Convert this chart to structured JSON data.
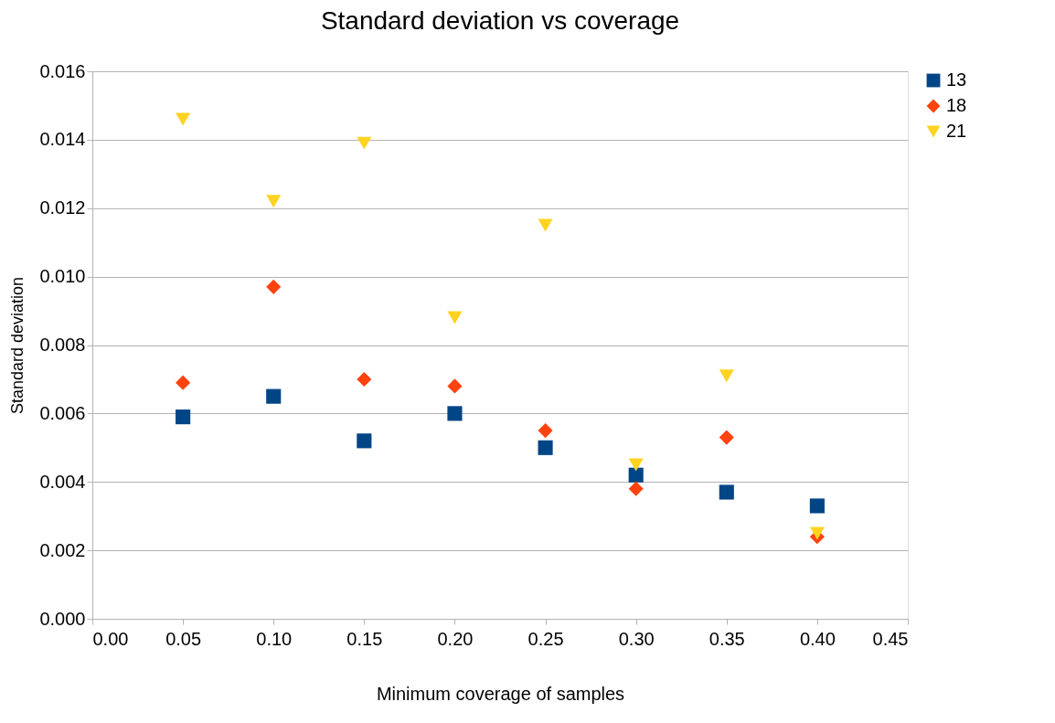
{
  "chart_data": {
    "type": "scatter",
    "title": "Standard deviation vs coverage",
    "xlabel": "Minimum coverage of samples",
    "ylabel": "Standard deviation",
    "x": [
      0.05,
      0.1,
      0.15,
      0.2,
      0.25,
      0.3,
      0.35,
      0.4
    ],
    "series": [
      {
        "name": "13",
        "color": "#004586",
        "marker": "square",
        "values": [
          0.0059,
          0.0065,
          0.0052,
          0.006,
          0.005,
          0.0042,
          0.0037,
          0.0033
        ]
      },
      {
        "name": "18",
        "color": "#ff420e",
        "marker": "diamond",
        "values": [
          0.0069,
          0.0097,
          0.007,
          0.0068,
          0.0055,
          0.0038,
          0.0053,
          0.0024
        ]
      },
      {
        "name": "21",
        "color": "#ffd320",
        "marker": "triangle",
        "values": [
          0.0146,
          0.0122,
          0.0139,
          0.0088,
          0.0115,
          0.0045,
          0.0071,
          0.0025
        ]
      }
    ],
    "xlim": [
      0,
      0.45
    ],
    "xticks": [
      {
        "value": 0,
        "label": "0.00"
      },
      {
        "value": 0.05,
        "label": "0.05"
      },
      {
        "value": 0.1,
        "label": "0.10"
      },
      {
        "value": 0.15,
        "label": "0.15"
      },
      {
        "value": 0.2,
        "label": "0.20"
      },
      {
        "value": 0.25,
        "label": "0.25"
      },
      {
        "value": 0.3,
        "label": "0.30"
      },
      {
        "value": 0.35,
        "label": "0.35"
      },
      {
        "value": 0.4,
        "label": "0.40"
      },
      {
        "value": 0.45,
        "label": "0.45"
      }
    ],
    "ylim": [
      0,
      0.016
    ],
    "yticks": [
      {
        "value": 0,
        "label": "0.000"
      },
      {
        "value": 0.002,
        "label": "0.002"
      },
      {
        "value": 0.004,
        "label": "0.004"
      },
      {
        "value": 0.006,
        "label": "0.006"
      },
      {
        "value": 0.008,
        "label": "0.008"
      },
      {
        "value": 0.01,
        "label": "0.010"
      },
      {
        "value": 0.012,
        "label": "0.012"
      },
      {
        "value": 0.014,
        "label": "0.014"
      },
      {
        "value": 0.016,
        "label": "0.016"
      }
    ],
    "grid": "y",
    "legend": "right"
  }
}
